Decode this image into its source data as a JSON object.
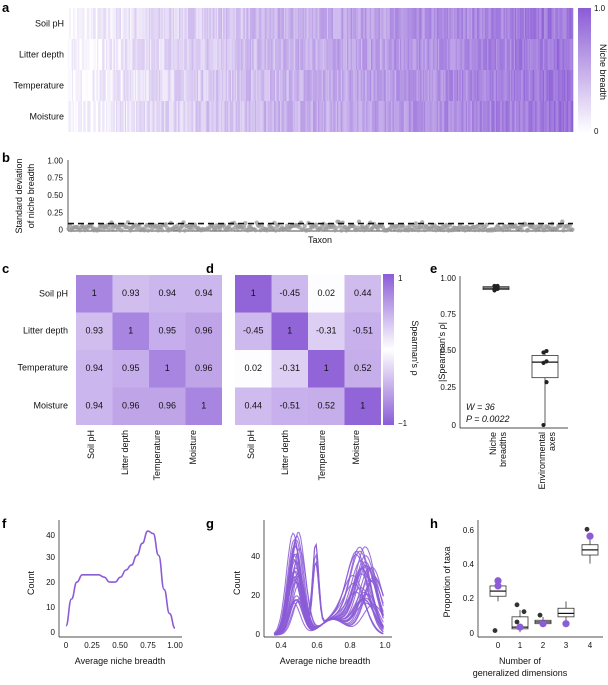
{
  "panels": {
    "a": "a",
    "b": "b",
    "c": "c",
    "d": "d",
    "e": "e",
    "f": "f",
    "g": "g",
    "h": "h"
  },
  "colors": {
    "accent": "#8B5CD6",
    "accent_light": "#F4EFFB",
    "grey": "#9a9a9a",
    "dark": "#333333"
  },
  "chart_data": [
    {
      "id": "a",
      "type": "heatmap",
      "rows": [
        "Soil pH",
        "Litter depth",
        "Temperature",
        "Moisture"
      ],
      "colorbar": {
        "label": "Niche breadth",
        "min": 0,
        "max": 1.0,
        "ticks": [
          "0",
          "1.0"
        ]
      },
      "n_columns": 400,
      "note": "taxa sorted by increasing average niche breadth (0 to 1)"
    },
    {
      "id": "b",
      "type": "scatter",
      "ylabel": "Standard deviation of niche breadth",
      "xlabel": "Taxon",
      "yticks": [
        "0",
        "0.25",
        "0.50",
        "0.75",
        "1.00"
      ],
      "ylim": [
        0,
        1.0
      ],
      "reference_line": 0.1,
      "n_points": 400
    },
    {
      "id": "c",
      "type": "heatmap",
      "labels": [
        "Soil pH",
        "Litter depth",
        "Temperature",
        "Moisture"
      ],
      "matrix": [
        [
          "1",
          "0.93",
          "0.94",
          "0.94"
        ],
        [
          "0.93",
          "1",
          "0.95",
          "0.96"
        ],
        [
          "0.94",
          "0.95",
          "1",
          "0.96"
        ],
        [
          "0.94",
          "0.96",
          "0.96",
          "1"
        ]
      ]
    },
    {
      "id": "d",
      "type": "heatmap",
      "labels": [
        "Soil pH",
        "Litter depth",
        "Temperature",
        "Moisture"
      ],
      "matrix": [
        [
          "1",
          "-0.45",
          "0.02",
          "0.44"
        ],
        [
          "-0.45",
          "1",
          "-0.31",
          "-0.51"
        ],
        [
          "0.02",
          "-0.31",
          "1",
          "0.52"
        ],
        [
          "0.44",
          "-0.51",
          "0.52",
          "1"
        ]
      ],
      "colorbar": {
        "label": "Spearman's ρ",
        "min": -1,
        "max": 1,
        "ticks": [
          "1",
          "−1"
        ]
      }
    },
    {
      "id": "e",
      "type": "box",
      "ylabel": "|Spearman's ρ|",
      "yticks": [
        "0",
        "0.25",
        "0.50",
        "0.75",
        "1.00"
      ],
      "ylim": [
        0,
        1.0
      ],
      "groups": [
        {
          "name": "Niche breadths",
          "points": [
            0.93,
            0.94,
            0.94,
            0.95,
            0.96,
            0.96
          ],
          "q1": 0.935,
          "median": 0.945,
          "q3": 0.955
        },
        {
          "name": "Environmental axes",
          "points": [
            0.02,
            0.31,
            0.44,
            0.45,
            0.51,
            0.52
          ],
          "q1": 0.34,
          "median": 0.445,
          "q3": 0.49
        }
      ],
      "annotation_W": "W = 36",
      "annotation_P": "P = 0.0022"
    },
    {
      "id": "f",
      "type": "line",
      "xlabel": "Average niche breadth",
      "ylabel": "Count",
      "xticks": [
        "0",
        "0.25",
        "0.50",
        "0.75",
        "1.00"
      ],
      "yticks": [
        "0",
        "10",
        "20",
        "30",
        "40"
      ],
      "xlim": [
        0,
        1
      ],
      "ylim": [
        0,
        45
      ],
      "x": [
        0.0,
        0.05,
        0.1,
        0.15,
        0.2,
        0.25,
        0.3,
        0.35,
        0.4,
        0.45,
        0.5,
        0.55,
        0.6,
        0.65,
        0.7,
        0.75,
        0.8,
        0.85,
        0.9,
        0.95,
        1.0
      ],
      "y": [
        3,
        14,
        21,
        24,
        24,
        24,
        24,
        23,
        21,
        21,
        23,
        26,
        28,
        32,
        37,
        42,
        41,
        32,
        18,
        8,
        2
      ]
    },
    {
      "id": "g",
      "type": "line",
      "xlabel": "Average niche breadth",
      "ylabel": "Count",
      "xticks": [
        "0.4",
        "0.6",
        "0.8",
        "1.0"
      ],
      "yticks": [
        "0",
        "20",
        "40"
      ],
      "xlim": [
        0.3,
        1.03
      ],
      "ylim": [
        0,
        58
      ],
      "n_series": 30,
      "note": "density curves: first peak about 0.5, second peak about 0.85-0.95"
    },
    {
      "id": "h",
      "type": "box",
      "xlabel": "Number of generalized dimensions",
      "ylabel": "Proportion of taxa",
      "categories": [
        "0",
        "1",
        "2",
        "3",
        "4"
      ],
      "yticks": [
        "0",
        "0.2",
        "0.4",
        "0.6"
      ],
      "ylim": [
        0,
        0.65
      ],
      "boxes": [
        {
          "q1": 0.22,
          "median": 0.25,
          "q3": 0.28,
          "lo": 0.19,
          "hi": 0.31,
          "outliers": [
            0.02
          ],
          "highlight": [
            0.31,
            0.28
          ]
        },
        {
          "q1": 0.03,
          "median": 0.04,
          "q3": 0.1,
          "lo": 0.01,
          "hi": 0.14,
          "outliers": [
            0.17,
            0.13,
            0.07
          ],
          "highlight": [
            0.04
          ]
        },
        {
          "q1": 0.06,
          "median": 0.07,
          "q3": 0.08,
          "lo": 0.04,
          "hi": 0.1,
          "outliers": [
            0.11
          ],
          "highlight": [
            0.06
          ]
        },
        {
          "q1": 0.1,
          "median": 0.12,
          "q3": 0.15,
          "lo": 0.07,
          "hi": 0.19,
          "outliers": [],
          "highlight": [
            0.06
          ]
        },
        {
          "q1": 0.46,
          "median": 0.49,
          "q3": 0.52,
          "lo": 0.41,
          "hi": 0.57,
          "outliers": [
            0.61
          ],
          "highlight": [
            0.57
          ]
        }
      ]
    }
  ]
}
